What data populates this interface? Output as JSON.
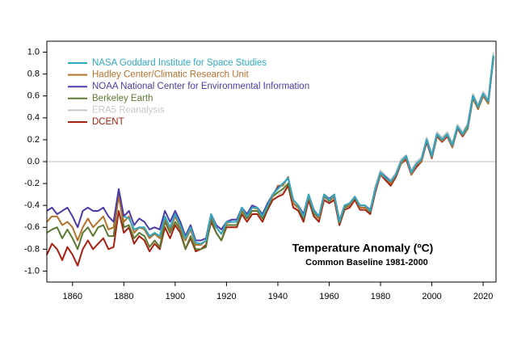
{
  "chart_data": {
    "type": "line",
    "annotation": "Temperature Anomaly (ºC)",
    "subtitle": "Common Baseline 1981-2000",
    "x": [
      1850,
      1852,
      1854,
      1856,
      1858,
      1860,
      1862,
      1864,
      1866,
      1868,
      1870,
      1872,
      1874,
      1876,
      1878,
      1880,
      1882,
      1884,
      1886,
      1888,
      1890,
      1892,
      1894,
      1896,
      1898,
      1900,
      1902,
      1904,
      1906,
      1908,
      1910,
      1912,
      1914,
      1916,
      1918,
      1920,
      1922,
      1924,
      1926,
      1928,
      1930,
      1932,
      1934,
      1936,
      1938,
      1940,
      1942,
      1944,
      1946,
      1948,
      1950,
      1952,
      1954,
      1956,
      1958,
      1960,
      1962,
      1964,
      1966,
      1968,
      1970,
      1972,
      1974,
      1976,
      1978,
      1980,
      1982,
      1984,
      1986,
      1988,
      1990,
      1992,
      1994,
      1996,
      1998,
      2000,
      2002,
      2004,
      2006,
      2008,
      2010,
      2012,
      2014,
      2016,
      2018,
      2020,
      2022,
      2024
    ],
    "xlim": [
      1850,
      2025
    ],
    "xticks": [
      1860,
      1880,
      1900,
      1920,
      1940,
      1960,
      1980,
      2000,
      2020
    ],
    "ylim": [
      -1.1,
      1.1
    ],
    "yticks": [
      {
        "value": 1,
        "label": "1.0"
      },
      0.8,
      0.6,
      0.4,
      0.2,
      {
        "value": 0,
        "label": "0.0"
      },
      -0.2,
      -0.4,
      -0.6,
      -0.8,
      {
        "value": -1,
        "label": "-1.0"
      }
    ],
    "reference_line": 0,
    "legend": "upper left",
    "series": [
      {
        "name": "NASA Goddard Institute for Space Studies",
        "color": "#2fa9c0",
        "values": [
          null,
          null,
          null,
          null,
          null,
          null,
          null,
          null,
          null,
          null,
          null,
          null,
          null,
          null,
          null,
          -0.5,
          -0.52,
          -0.62,
          -0.6,
          -0.6,
          -0.68,
          -0.65,
          -0.68,
          -0.5,
          -0.6,
          -0.48,
          -0.58,
          -0.7,
          -0.6,
          -0.74,
          -0.75,
          -0.72,
          -0.48,
          -0.6,
          -0.66,
          -0.55,
          -0.55,
          -0.55,
          -0.42,
          -0.5,
          -0.42,
          -0.42,
          -0.5,
          -0.4,
          -0.3,
          -0.25,
          -0.2,
          -0.15,
          -0.35,
          -0.4,
          -0.5,
          -0.3,
          -0.45,
          -0.5,
          -0.3,
          -0.35,
          -0.3,
          -0.55,
          -0.4,
          -0.38,
          -0.32,
          -0.4,
          -0.4,
          -0.45,
          -0.25,
          -0.1,
          -0.15,
          -0.18,
          -0.12,
          0.0,
          0.05,
          -0.1,
          -0.02,
          0.02,
          0.2,
          0.05,
          0.25,
          0.2,
          0.25,
          0.15,
          0.32,
          0.25,
          0.32,
          0.6,
          0.5,
          0.62,
          0.55,
          0.97
        ]
      },
      {
        "name": "Hadley Center/Climatic Research Unit",
        "color": "#b5702a",
        "values": [
          -0.55,
          -0.5,
          -0.5,
          -0.58,
          -0.55,
          -0.6,
          -0.72,
          -0.6,
          -0.52,
          -0.6,
          -0.55,
          -0.5,
          -0.62,
          -0.6,
          -0.32,
          -0.55,
          -0.5,
          -0.65,
          -0.6,
          -0.62,
          -0.7,
          -0.66,
          -0.7,
          -0.52,
          -0.62,
          -0.5,
          -0.6,
          -0.72,
          -0.62,
          -0.76,
          -0.76,
          -0.72,
          -0.5,
          -0.6,
          -0.66,
          -0.56,
          -0.55,
          -0.55,
          -0.44,
          -0.5,
          -0.42,
          -0.43,
          -0.5,
          -0.4,
          -0.32,
          -0.22,
          -0.22,
          -0.14,
          -0.38,
          -0.42,
          -0.5,
          -0.32,
          -0.45,
          -0.52,
          -0.32,
          -0.35,
          -0.32,
          -0.55,
          -0.4,
          -0.4,
          -0.32,
          -0.42,
          -0.42,
          -0.45,
          -0.26,
          -0.12,
          -0.15,
          -0.2,
          -0.12,
          -0.02,
          0.04,
          -0.12,
          -0.03,
          0.0,
          0.2,
          0.04,
          0.24,
          0.19,
          0.24,
          0.13,
          0.3,
          0.24,
          0.3,
          0.58,
          0.48,
          0.6,
          0.53,
          0.95
        ]
      },
      {
        "name": "NOAA National Center for Environmental Information",
        "color": "#4b3aa8",
        "values": [
          -0.45,
          -0.42,
          -0.48,
          -0.45,
          -0.42,
          -0.5,
          -0.6,
          -0.45,
          -0.42,
          -0.45,
          -0.45,
          -0.42,
          -0.5,
          -0.55,
          -0.25,
          -0.5,
          -0.45,
          -0.58,
          -0.52,
          -0.55,
          -0.62,
          -0.6,
          -0.62,
          -0.45,
          -0.55,
          -0.45,
          -0.55,
          -0.68,
          -0.58,
          -0.72,
          -0.72,
          -0.7,
          -0.48,
          -0.58,
          -0.62,
          -0.55,
          -0.53,
          -0.53,
          -0.42,
          -0.48,
          -0.4,
          -0.42,
          -0.48,
          -0.38,
          -0.3,
          -0.24,
          -0.2,
          -0.15,
          -0.35,
          -0.4,
          -0.48,
          -0.3,
          -0.44,
          -0.5,
          -0.3,
          -0.34,
          -0.3,
          -0.54,
          -0.4,
          -0.38,
          -0.32,
          -0.4,
          -0.4,
          -0.44,
          -0.25,
          -0.1,
          -0.14,
          -0.18,
          -0.12,
          0.0,
          0.05,
          -0.1,
          -0.02,
          0.02,
          0.2,
          0.05,
          0.25,
          0.2,
          0.25,
          0.15,
          0.31,
          0.25,
          0.32,
          0.6,
          0.5,
          0.62,
          0.55,
          0.96
        ]
      },
      {
        "name": "Berkeley Earth",
        "color": "#5a7a30",
        "values": [
          -0.65,
          -0.62,
          -0.6,
          -0.7,
          -0.62,
          -0.7,
          -0.8,
          -0.65,
          -0.6,
          -0.68,
          -0.6,
          -0.58,
          -0.68,
          -0.68,
          -0.3,
          -0.6,
          -0.58,
          -0.7,
          -0.65,
          -0.68,
          -0.78,
          -0.72,
          -0.78,
          -0.55,
          -0.65,
          -0.55,
          -0.62,
          -0.8,
          -0.68,
          -0.8,
          -0.8,
          -0.78,
          -0.52,
          -0.65,
          -0.72,
          -0.58,
          -0.58,
          -0.58,
          -0.45,
          -0.52,
          -0.45,
          -0.45,
          -0.52,
          -0.42,
          -0.32,
          -0.28,
          -0.25,
          -0.2,
          -0.38,
          -0.42,
          -0.52,
          -0.32,
          -0.47,
          -0.52,
          -0.32,
          -0.36,
          -0.32,
          -0.56,
          -0.42,
          -0.4,
          -0.33,
          -0.42,
          -0.42,
          -0.46,
          -0.26,
          -0.1,
          -0.15,
          -0.2,
          -0.12,
          0.0,
          0.04,
          -0.1,
          -0.03,
          0.02,
          0.2,
          0.05,
          0.25,
          0.2,
          0.25,
          0.15,
          0.32,
          0.25,
          0.33,
          0.6,
          0.5,
          0.62,
          0.55,
          0.97
        ]
      },
      {
        "name": "ERA5 Reanalysis",
        "color": "#c8c8c8",
        "values": [
          null,
          null,
          null,
          null,
          null,
          null,
          null,
          null,
          null,
          null,
          null,
          null,
          null,
          null,
          null,
          null,
          null,
          null,
          null,
          null,
          null,
          null,
          null,
          null,
          null,
          null,
          null,
          null,
          null,
          null,
          null,
          null,
          null,
          null,
          null,
          null,
          null,
          null,
          null,
          null,
          null,
          null,
          null,
          null,
          null,
          -0.3,
          -0.28,
          -0.22,
          -0.38,
          -0.45,
          -0.55,
          -0.35,
          -0.48,
          -0.55,
          -0.35,
          -0.38,
          -0.33,
          -0.58,
          -0.42,
          -0.4,
          -0.35,
          -0.42,
          -0.42,
          -0.46,
          -0.22,
          -0.08,
          -0.13,
          -0.17,
          -0.1,
          0.02,
          0.06,
          -0.08,
          0.0,
          0.04,
          0.22,
          0.07,
          0.27,
          0.22,
          0.27,
          0.17,
          0.34,
          0.27,
          0.35,
          0.62,
          0.52,
          0.64,
          0.57,
          1.0
        ]
      },
      {
        "name": "DCENT",
        "color": "#a8200f",
        "values": [
          -0.85,
          -0.75,
          -0.8,
          -0.9,
          -0.78,
          -0.85,
          -0.95,
          -0.8,
          -0.72,
          -0.8,
          -0.75,
          -0.7,
          -0.8,
          -0.78,
          -0.45,
          -0.65,
          -0.6,
          -0.75,
          -0.68,
          -0.72,
          -0.82,
          -0.75,
          -0.8,
          -0.6,
          -0.7,
          -0.58,
          -0.65,
          -0.8,
          -0.7,
          -0.82,
          -0.8,
          -0.76,
          -0.55,
          -0.65,
          -0.72,
          -0.6,
          -0.6,
          -0.6,
          -0.48,
          -0.55,
          -0.48,
          -0.48,
          -0.55,
          -0.44,
          -0.35,
          -0.32,
          -0.3,
          -0.22,
          -0.42,
          -0.45,
          -0.55,
          -0.35,
          -0.5,
          -0.55,
          -0.35,
          -0.38,
          -0.35,
          -0.58,
          -0.44,
          -0.42,
          -0.35,
          -0.44,
          -0.44,
          -0.48,
          -0.28,
          -0.12,
          -0.17,
          -0.22,
          -0.14,
          -0.02,
          0.02,
          -0.12,
          -0.05,
          0.0,
          0.18,
          0.03,
          0.23,
          0.18,
          0.23,
          0.13,
          0.3,
          0.23,
          0.3,
          0.58,
          0.48,
          0.6,
          0.53,
          0.95
        ]
      }
    ]
  }
}
